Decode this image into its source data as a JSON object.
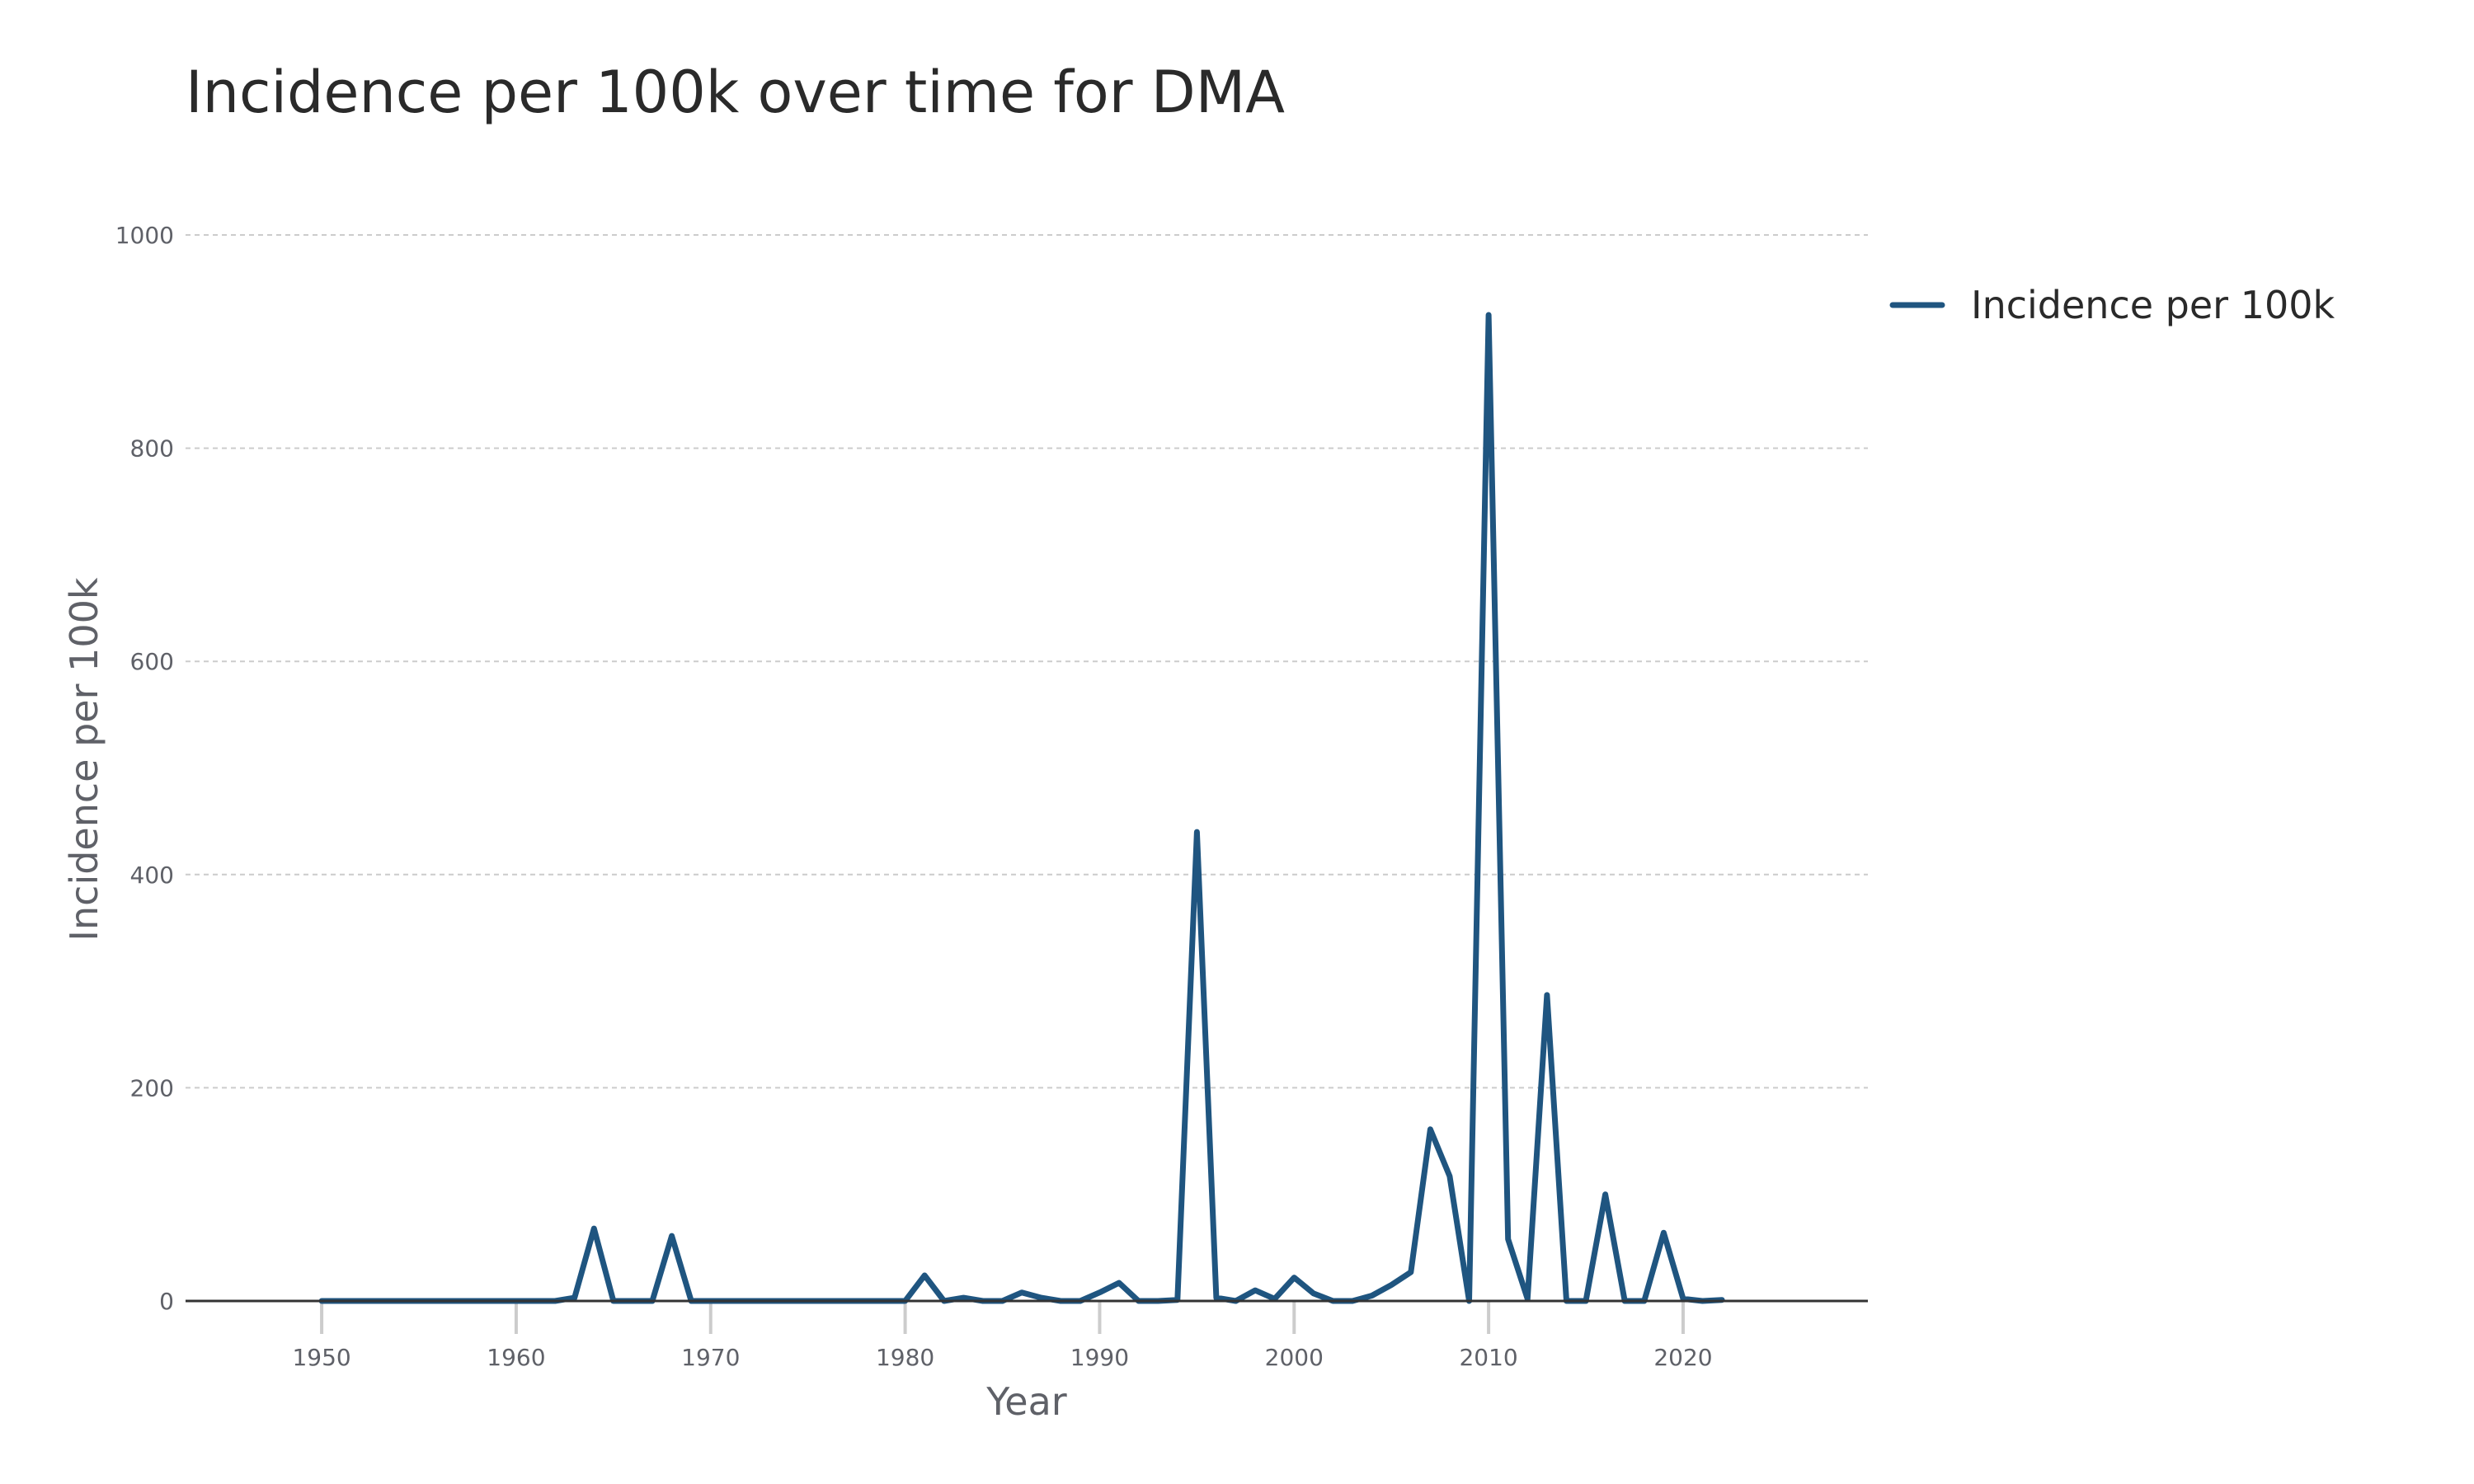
{
  "chart_data": {
    "type": "line",
    "title": "Incidence per 100k over time for DMA",
    "xlabel": "Year",
    "ylabel": "Incidence per 100k",
    "xlim": [
      1943,
      2029.5
    ],
    "ylim": [
      0,
      1000
    ],
    "xticks": [
      1950,
      1960,
      1970,
      1980,
      1990,
      2000,
      2010,
      2020
    ],
    "yticks": [
      0,
      200,
      400,
      600,
      800,
      1000
    ],
    "grid": true,
    "legend_position": "top-right",
    "colors": {
      "series": "#1f5580",
      "grid": "#cccccc",
      "axis": "#333333"
    },
    "series": [
      {
        "name": "Incidence per 100k",
        "x": [
          1950,
          1951,
          1952,
          1953,
          1954,
          1955,
          1956,
          1957,
          1958,
          1959,
          1960,
          1961,
          1962,
          1963,
          1964,
          1965,
          1966,
          1967,
          1968,
          1969,
          1970,
          1971,
          1972,
          1973,
          1974,
          1975,
          1976,
          1977,
          1978,
          1979,
          1980,
          1981,
          1982,
          1983,
          1984,
          1985,
          1986,
          1987,
          1988,
          1989,
          1990,
          1991,
          1992,
          1993,
          1994,
          1995,
          1996,
          1997,
          1998,
          1999,
          2000,
          2001,
          2002,
          2003,
          2004,
          2005,
          2006,
          2007,
          2008,
          2009,
          2010,
          2011,
          2012,
          2013,
          2014,
          2015,
          2016,
          2017,
          2018,
          2019,
          2020,
          2021,
          2022
        ],
        "values": [
          0,
          0,
          0,
          0,
          0,
          0,
          0,
          0,
          0,
          0,
          0,
          0,
          0,
          3,
          68,
          0,
          0,
          0,
          61,
          0,
          0,
          0,
          0,
          0,
          0,
          0,
          0,
          0,
          0,
          0,
          0,
          24,
          0,
          3,
          0,
          0,
          8,
          3,
          0,
          0,
          8,
          17,
          0,
          0,
          1,
          440,
          3,
          0,
          10,
          2,
          22,
          7,
          0,
          0,
          5,
          15,
          27,
          161,
          117,
          0,
          925,
          58,
          2,
          287,
          0,
          0,
          100,
          0,
          0,
          64,
          2,
          0,
          1
        ]
      }
    ]
  }
}
